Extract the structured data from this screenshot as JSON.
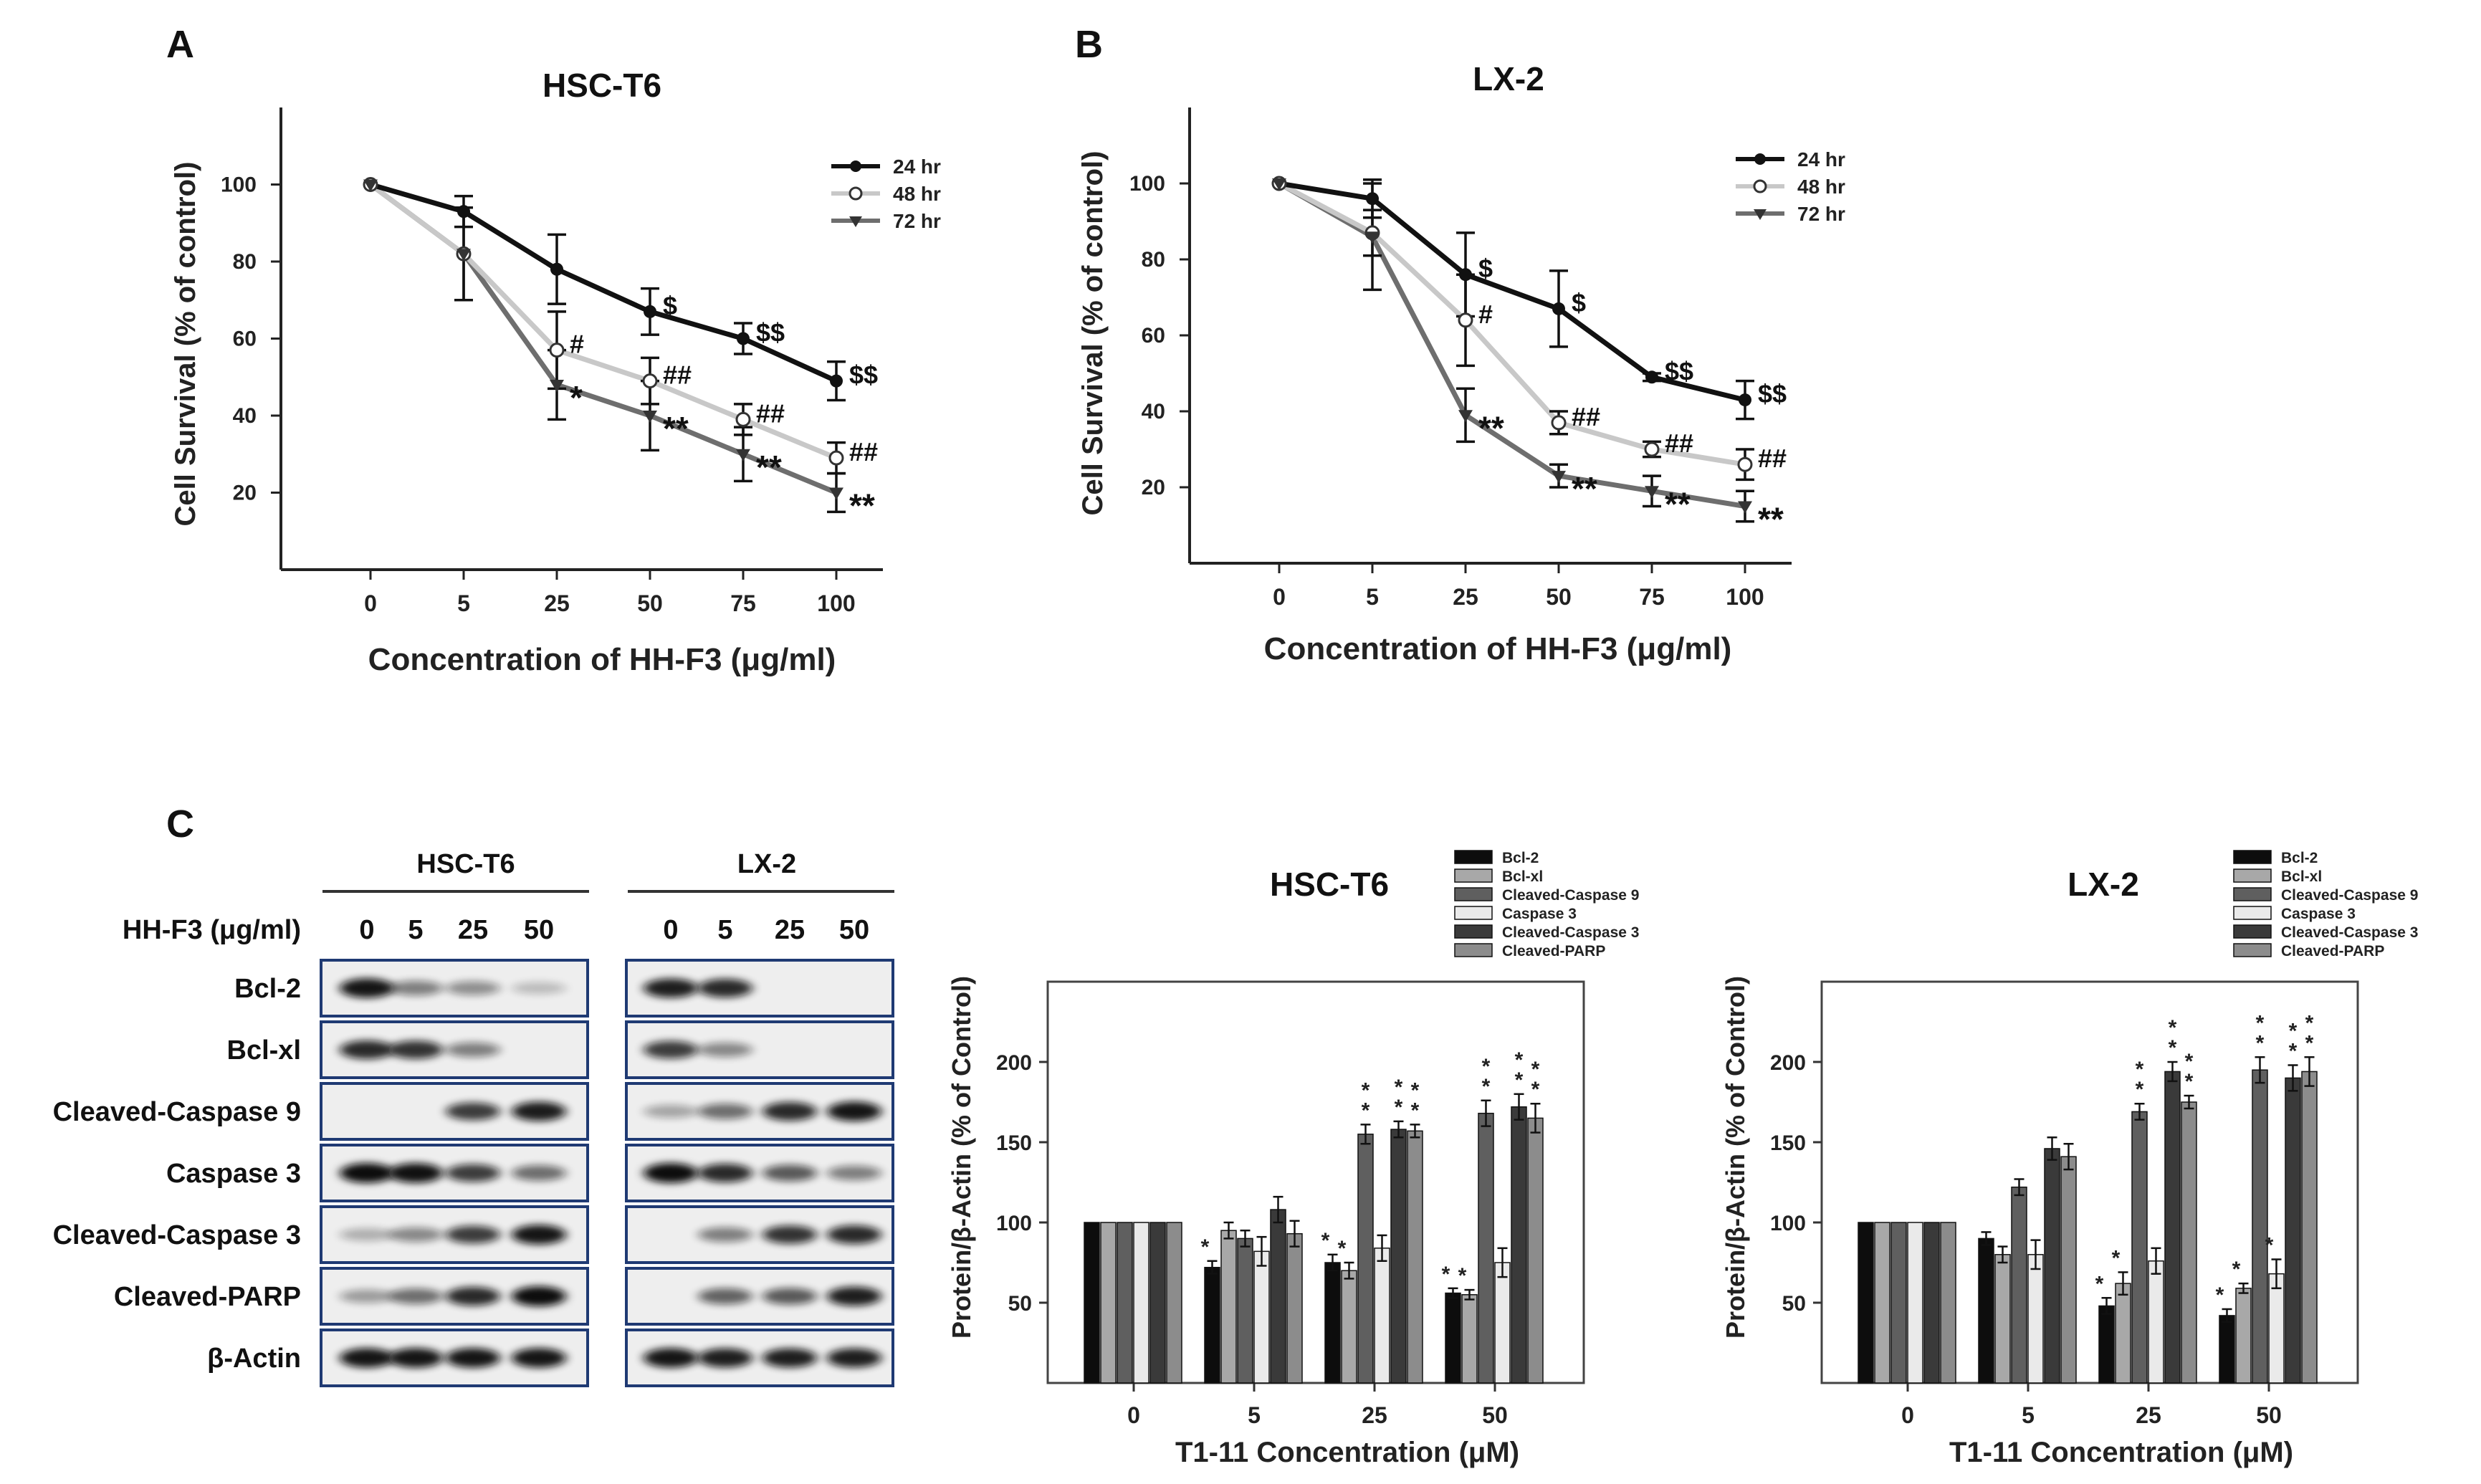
{
  "panels": {
    "a": "A",
    "b": "B",
    "c": "C"
  },
  "colors": {
    "line_24": "#111111",
    "line_48": "#c8c8c8",
    "line_72": "#6e6e6e",
    "bar_fills": [
      "#0d0d0d",
      "#a8a8a8",
      "#5f5f5f",
      "#eaeaea",
      "#3a3a3a",
      "#8c8c8c"
    ],
    "axis": "#222222",
    "blot_border": "#1f3a73"
  },
  "chart_data": [
    {
      "id": "A",
      "type": "line",
      "title": "HSC-T6",
      "xlabel": "Concentration of HH-F3 (μg/ml)",
      "ylabel": "Cell Survival (% of control)",
      "x_ticks": [
        "0",
        "5",
        "25",
        "50",
        "75",
        "100"
      ],
      "y_ticks": [
        20,
        40,
        60,
        80,
        100
      ],
      "ylim": [
        0,
        120
      ],
      "legend_position": "top-right",
      "series": [
        {
          "name": "24 hr",
          "marker": "filled-circle",
          "values": [
            100,
            93,
            78,
            67,
            60,
            49
          ],
          "errors": [
            0,
            4,
            9,
            6,
            4,
            5
          ],
          "annotations": [
            "",
            "",
            "",
            "$",
            "$$",
            "$$"
          ]
        },
        {
          "name": "48 hr",
          "marker": "open-circle",
          "values": [
            100,
            82,
            57,
            49,
            39,
            29
          ],
          "errors": [
            0,
            12,
            10,
            6,
            4,
            4
          ],
          "annotations": [
            "",
            "",
            "#",
            "##",
            "##",
            "##"
          ]
        },
        {
          "name": "72 hr",
          "marker": "triangle-down",
          "values": [
            100,
            82,
            48,
            40,
            30,
            20
          ],
          "errors": [
            0,
            12,
            9,
            9,
            7,
            5
          ],
          "annotations": [
            "",
            "",
            "*",
            "**",
            "**",
            "**"
          ]
        }
      ]
    },
    {
      "id": "B",
      "type": "line",
      "title": "LX-2",
      "xlabel": "Concentration of HH-F3 (μg/ml)",
      "ylabel": "Cell Survival (% of control)",
      "x_ticks": [
        "0",
        "5",
        "25",
        "50",
        "75",
        "100"
      ],
      "y_ticks": [
        20,
        40,
        60,
        80,
        100
      ],
      "ylim": [
        0,
        120
      ],
      "legend_position": "top-right",
      "series": [
        {
          "name": "24 hr",
          "marker": "filled-circle",
          "values": [
            100,
            96,
            76,
            67,
            49,
            43
          ],
          "errors": [
            0,
            5,
            11,
            10,
            1,
            5
          ],
          "annotations": [
            "",
            "",
            "$",
            "$",
            "$$",
            "$$"
          ]
        },
        {
          "name": "48 hr",
          "marker": "open-circle",
          "values": [
            100,
            87,
            64,
            37,
            30,
            26
          ],
          "errors": [
            0,
            6,
            12,
            3,
            2,
            4
          ],
          "annotations": [
            "",
            "",
            "#",
            "##",
            "##",
            "##"
          ]
        },
        {
          "name": "72 hr",
          "marker": "triangle-down",
          "values": [
            100,
            86,
            39,
            23,
            19,
            15
          ],
          "errors": [
            0,
            14,
            7,
            3,
            4,
            4
          ],
          "annotations": [
            "",
            "",
            "**",
            "**",
            "**",
            "**"
          ]
        }
      ]
    },
    {
      "id": "C-HSC-T6",
      "type": "bar",
      "title": "HSC-T6",
      "xlabel": "T1-11 Concentration (μM)",
      "ylabel": "Protein/β-Actin (% of Control)",
      "categories": [
        "0",
        "5",
        "25",
        "50"
      ],
      "y_ticks": [
        50,
        100,
        150,
        200
      ],
      "ylim": [
        0,
        250
      ],
      "legend_position": "top-right",
      "series": [
        {
          "name": "Bcl-2",
          "values": [
            100,
            72,
            75,
            56
          ],
          "errors": [
            0,
            4,
            5,
            3
          ],
          "annotations": [
            "",
            "*",
            "*",
            "*"
          ]
        },
        {
          "name": "Bcl-xl",
          "values": [
            100,
            95,
            70,
            55
          ],
          "errors": [
            0,
            5,
            5,
            3
          ],
          "annotations": [
            "",
            "",
            "*",
            "*"
          ]
        },
        {
          "name": "Cleaved-Caspase 9",
          "values": [
            100,
            90,
            155,
            168
          ],
          "errors": [
            0,
            5,
            6,
            8
          ],
          "annotations": [
            "",
            "",
            "**",
            "**"
          ]
        },
        {
          "name": "Caspase 3",
          "values": [
            100,
            82,
            84,
            75
          ],
          "errors": [
            0,
            9,
            8,
            9
          ],
          "annotations": [
            "",
            "",
            "",
            ""
          ]
        },
        {
          "name": "Cleaved-Caspase 3",
          "values": [
            100,
            108,
            158,
            172
          ],
          "errors": [
            0,
            8,
            5,
            8
          ],
          "annotations": [
            "",
            "",
            "**",
            "**"
          ]
        },
        {
          "name": "Cleaved-PARP",
          "values": [
            100,
            93,
            157,
            165
          ],
          "errors": [
            0,
            8,
            4,
            9
          ],
          "annotations": [
            "",
            "",
            "**",
            "**"
          ]
        }
      ]
    },
    {
      "id": "C-LX-2",
      "type": "bar",
      "title": "LX-2",
      "xlabel": "T1-11 Concentration (μM)",
      "ylabel": "Protein/β-Actin (% of Control)",
      "categories": [
        "0",
        "5",
        "25",
        "50"
      ],
      "y_ticks": [
        50,
        100,
        150,
        200
      ],
      "ylim": [
        0,
        250
      ],
      "legend_position": "top-right",
      "series": [
        {
          "name": "Bcl-2",
          "values": [
            100,
            90,
            48,
            42
          ],
          "errors": [
            0,
            4,
            5,
            4
          ],
          "annotations": [
            "",
            "",
            "*",
            "*"
          ]
        },
        {
          "name": "Bcl-xl",
          "values": [
            100,
            80,
            62,
            59
          ],
          "errors": [
            0,
            5,
            7,
            3
          ],
          "annotations": [
            "",
            "",
            "*",
            "*"
          ]
        },
        {
          "name": "Cleaved-Caspase 9",
          "values": [
            100,
            122,
            169,
            195
          ],
          "errors": [
            0,
            5,
            5,
            8
          ],
          "annotations": [
            "",
            "",
            "**",
            "**"
          ]
        },
        {
          "name": "Caspase 3",
          "values": [
            100,
            80,
            76,
            68
          ],
          "errors": [
            0,
            9,
            8,
            9
          ],
          "annotations": [
            "",
            "",
            "",
            "*"
          ]
        },
        {
          "name": "Cleaved-Caspase 3",
          "values": [
            100,
            146,
            194,
            190
          ],
          "errors": [
            0,
            7,
            6,
            8
          ],
          "annotations": [
            "",
            "",
            "**",
            "**"
          ]
        },
        {
          "name": "Cleaved-PARP",
          "values": [
            100,
            141,
            175,
            194
          ],
          "errors": [
            0,
            8,
            4,
            9
          ],
          "annotations": [
            "",
            "",
            "**",
            "**"
          ]
        }
      ]
    }
  ],
  "blot": {
    "treatment_label": "HH-F3 (μg/ml)",
    "groups": [
      {
        "name": "HSC-T6",
        "lanes": [
          "0",
          "5",
          "25",
          "50"
        ]
      },
      {
        "name": "LX-2",
        "lanes": [
          "0",
          "5",
          "25",
          "50"
        ]
      }
    ],
    "rows": [
      {
        "name": "Bcl-2",
        "hsc": [
          0.95,
          0.4,
          0.32,
          0.08
        ],
        "lx": [
          0.9,
          0.85,
          0,
          0
        ]
      },
      {
        "name": "Bcl-xl",
        "hsc": [
          0.85,
          0.8,
          0.4,
          0
        ],
        "lx": [
          0.75,
          0.35,
          0,
          0
        ]
      },
      {
        "name": "Cleaved-Caspase 9",
        "hsc": [
          0,
          0,
          0.75,
          0.92
        ],
        "lx": [
          0.2,
          0.5,
          0.85,
          0.95
        ]
      },
      {
        "name": "Caspase 3",
        "hsc": [
          1.0,
          0.98,
          0.75,
          0.5
        ],
        "lx": [
          1.0,
          0.85,
          0.6,
          0.4
        ]
      },
      {
        "name": "Cleaved-Caspase 3",
        "hsc": [
          0.15,
          0.35,
          0.75,
          0.95
        ],
        "lx": [
          0,
          0.4,
          0.8,
          0.85
        ]
      },
      {
        "name": "Cleaved-PARP",
        "hsc": [
          0.25,
          0.5,
          0.85,
          1.0
        ],
        "lx": [
          0,
          0.55,
          0.6,
          0.9
        ]
      },
      {
        "name": "β-Actin",
        "hsc": [
          0.95,
          0.95,
          0.95,
          0.95
        ],
        "lx": [
          0.95,
          0.9,
          0.9,
          0.9
        ]
      }
    ]
  }
}
